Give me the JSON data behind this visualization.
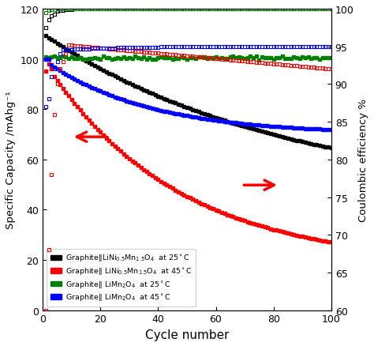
{
  "xlabel": "Cycle number",
  "ylabel_left": "Specific Capacity /mAhg⁻¹",
  "ylabel_right": "Coulombic efficiency %",
  "xlim": [
    0,
    100
  ],
  "ylim_left": [
    0,
    120
  ],
  "ylim_right": [
    60,
    100
  ],
  "xticks": [
    0,
    20,
    40,
    60,
    80,
    100
  ],
  "yticks_left": [
    0,
    20,
    40,
    60,
    80,
    100,
    120
  ],
  "yticks_right": [
    60,
    65,
    70,
    75,
    80,
    85,
    90,
    95,
    100
  ],
  "colors": [
    "black",
    "red",
    "green",
    "blue"
  ]
}
